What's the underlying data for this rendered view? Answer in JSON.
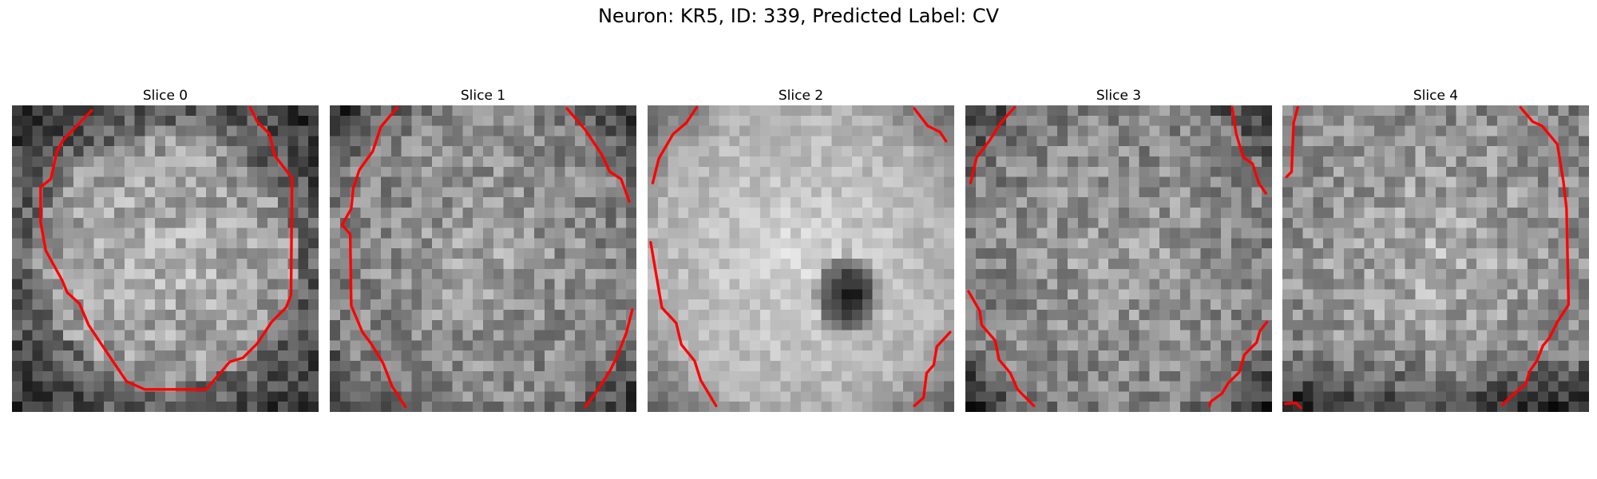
{
  "figure": {
    "title": "Neuron: KR5, ID: 339, Predicted Label: CV"
  },
  "contour_color": "#ff0000",
  "slices": [
    {
      "label": "Slice 0"
    },
    {
      "label": "Slice 1"
    },
    {
      "label": "Slice 2"
    },
    {
      "label": "Slice 3"
    },
    {
      "label": "Slice 4"
    }
  ]
}
